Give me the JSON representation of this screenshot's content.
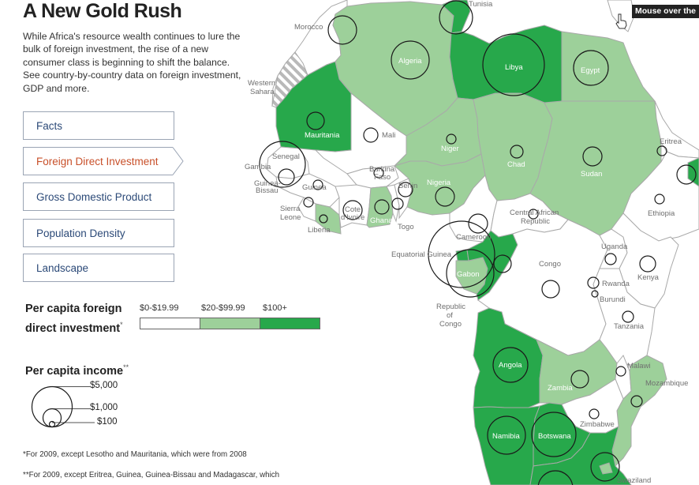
{
  "header": {
    "title": "A New Gold Rush",
    "intro": "While Africa's resource wealth continues to lure the bulk of foreign investment, the rise of a new consumer class is beginning to shift the balance. See country-by-country data on foreign investment, GDP and more."
  },
  "tabs": [
    {
      "label": "Facts",
      "active": false
    },
    {
      "label": "Foreign Direct Investment",
      "active": true
    },
    {
      "label": "Gross Domestic Product",
      "active": false
    },
    {
      "label": "Population Density",
      "active": false
    },
    {
      "label": "Landscape",
      "active": false
    }
  ],
  "fdi_legend": {
    "title_line1": "Per capita foreign",
    "title_line2": "direct investment",
    "footnote_mark": "*",
    "ranges": [
      {
        "label": "$0-$19.99",
        "color": "#ffffff"
      },
      {
        "label": "$20-$99.99",
        "color": "#9dd09a"
      },
      {
        "label": "$100+",
        "color": "#27a84b"
      }
    ]
  },
  "income_legend": {
    "title": "Per capita income",
    "footnote_mark": "**",
    "sizes": [
      {
        "label": "$5,000"
      },
      {
        "label": "$1,000"
      },
      {
        "label": "$100"
      }
    ]
  },
  "footnotes": [
    "*For 2009, except Lesotho and Mauritania, which were from 2008",
    "**For 2009, except Eritrea, Guinea, Guinea-Bissau and Madagascar, which"
  ],
  "tooltip": "Mouse over the",
  "colors": {
    "high": "#27a84b",
    "mid": "#9dd09a",
    "low": "#ffffff",
    "border": "#a9a9a9",
    "text_accent": "#c8502a",
    "tab_text": "#2c4a78"
  },
  "map_labels": {
    "tunisia": "Tunisia",
    "morocco": "Morocco",
    "algeria": "Algeria",
    "libya": "Libya",
    "egypt": "Egypt",
    "western_sahara": "Western\nSahara",
    "mauritania": "Mauritania",
    "mali": "Mali",
    "niger": "Niger",
    "chad": "Chad",
    "sudan": "Sudan",
    "eritrea": "Eritrea",
    "senegal": "Senegal",
    "gambia": "Gambia",
    "guinea_bissau": "Guinea-\nBissau",
    "guinea": "Guinea",
    "burkina_faso": "Burkina\nFaso",
    "nigeria": "Nigeria",
    "ethiopia": "Ethiopia",
    "sierra_leone": "Sierra\nLeone",
    "liberia": "Liberia",
    "cote_divoire": "Cote\nd'Ivoire",
    "ghana": "Ghana",
    "togo": "Togo",
    "benin": "Benin",
    "car": "Central African\nRepublic",
    "cameroon": "Cameroon",
    "equatorial_guinea": "Equatorial Guinea",
    "gabon": "Gabon",
    "congo": "Congo",
    "republic_of_congo": "Republic\nof\nCongo",
    "uganda": "Uganda",
    "kenya": "Kenya",
    "rwanda": "Rwanda",
    "burundi": "Burundi",
    "tanzania": "Tanzania",
    "angola": "Angola",
    "zambia": "Zambia",
    "malawi": "Malawi",
    "mozambique": "Mozambique",
    "zimbabwe": "Zimbabwe",
    "namibia": "Namibia",
    "botswana": "Botswana",
    "swaziland": "Swaziland"
  }
}
